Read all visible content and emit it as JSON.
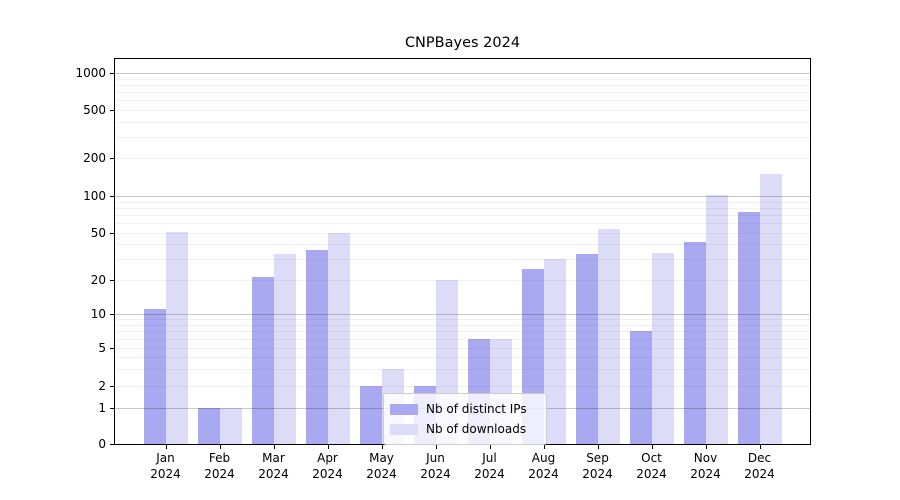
{
  "chart_data": {
    "type": "bar",
    "title": "CNPBayes 2024",
    "categories": [
      "Jan",
      "Feb",
      "Mar",
      "Apr",
      "May",
      "Jun",
      "Jul",
      "Aug",
      "Sep",
      "Oct",
      "Nov",
      "Dec"
    ],
    "year_label": "2024",
    "series": [
      {
        "name": "Nb of distinct IPs",
        "color": "#a9a9f1",
        "values": [
          11,
          1,
          21,
          36,
          2,
          2,
          6,
          25,
          33,
          7,
          42,
          74
        ]
      },
      {
        "name": "Nb of downloads",
        "color": "#dcdcf8",
        "values": [
          51,
          1,
          33,
          50,
          3,
          20,
          6,
          30,
          54,
          34,
          101,
          150
        ]
      }
    ],
    "xlabel": "",
    "ylabel": "",
    "y_axis": {
      "scale": "log-like-with-zero",
      "ticks": [
        0,
        1,
        2,
        5,
        10,
        20,
        50,
        100,
        200,
        500,
        1000
      ],
      "range": [
        0,
        1000
      ]
    },
    "grid": {
      "enabled": true,
      "major_color": "#c9c9c9",
      "minor_color": "#efefef"
    },
    "legend": {
      "position": "inside-bottom-center"
    },
    "colors": {
      "axis": "#000000",
      "background": "#ffffff",
      "text": "#000000"
    }
  }
}
